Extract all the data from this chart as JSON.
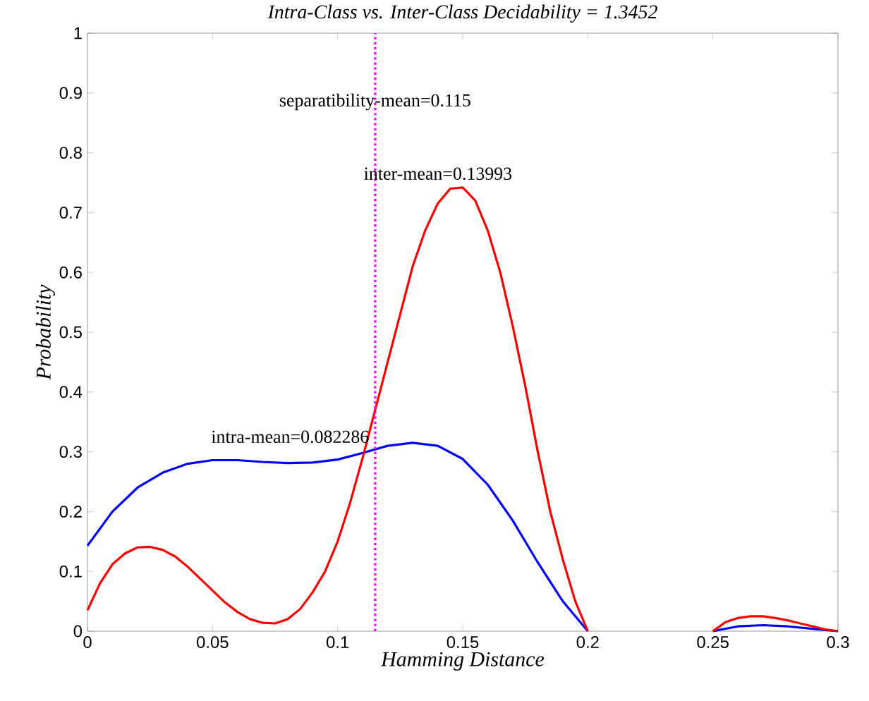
{
  "chart_data": {
    "type": "line",
    "title": "Intra-Class vs. Inter-Class Decidability = 1.3452",
    "xlabel": "Hamming Distance",
    "ylabel": "Probability",
    "xlim": [
      0,
      0.3
    ],
    "ylim": [
      0,
      1
    ],
    "xticks": [
      0,
      0.05,
      0.1,
      0.15,
      0.2,
      0.25,
      0.3
    ],
    "yticks": [
      0,
      0.1,
      0.2,
      0.3,
      0.4,
      0.5,
      0.6,
      0.7,
      0.8,
      0.9,
      1
    ],
    "grid": false,
    "marker": "none",
    "line_style": "solid",
    "series": [
      {
        "color": "#0000ff",
        "x": [
          0,
          0.01,
          0.02,
          0.03,
          0.04,
          0.05,
          0.06,
          0.07,
          0.08,
          0.09,
          0.1,
          0.11,
          0.12,
          0.13,
          0.14,
          0.15,
          0.16,
          0.17,
          0.18,
          0.19,
          0.2,
          0.21,
          0.22,
          0.23,
          0.24,
          0.25,
          0.26,
          0.27,
          0.28,
          0.29,
          0.3
        ],
        "values": [
          0.143,
          0.2,
          0.24,
          0.265,
          0.28,
          0.286,
          0.286,
          0.283,
          0.281,
          0.282,
          0.287,
          0.298,
          0.31,
          0.315,
          0.31,
          0.288,
          0.245,
          0.185,
          0.115,
          0.05,
          0,
          null,
          null,
          null,
          null,
          0,
          0.008,
          0.01,
          0.008,
          0.004,
          0
        ]
      },
      {
        "color": "#ff0000",
        "x": [
          0,
          0.005,
          0.01,
          0.015,
          0.02,
          0.025,
          0.03,
          0.035,
          0.04,
          0.045,
          0.05,
          0.055,
          0.06,
          0.065,
          0.07,
          0.075,
          0.08,
          0.085,
          0.09,
          0.095,
          0.1,
          0.105,
          0.11,
          0.115,
          0.12,
          0.125,
          0.13,
          0.135,
          0.14,
          0.145,
          0.15,
          0.155,
          0.16,
          0.165,
          0.17,
          0.175,
          0.18,
          0.185,
          0.19,
          0.195,
          0.2,
          0.225,
          0.25,
          0.255,
          0.26,
          0.265,
          0.27,
          0.275,
          0.28,
          0.285,
          0.29,
          0.295,
          0.3
        ],
        "values": [
          0.035,
          0.08,
          0.112,
          0.13,
          0.14,
          0.141,
          0.136,
          0.125,
          0.108,
          0.088,
          0.068,
          0.048,
          0.032,
          0.02,
          0.014,
          0.013,
          0.02,
          0.037,
          0.065,
          0.1,
          0.15,
          0.215,
          0.29,
          0.37,
          0.45,
          0.53,
          0.61,
          0.67,
          0.715,
          0.74,
          0.742,
          0.72,
          0.67,
          0.6,
          0.51,
          0.41,
          0.3,
          0.2,
          0.12,
          0.05,
          0,
          null,
          0,
          0.015,
          0.022,
          0.025,
          0.025,
          0.022,
          0.018,
          0.013,
          0.008,
          0.003,
          0
        ]
      }
    ],
    "ref_lines": [
      {
        "axis": "x",
        "value": 0.115,
        "color": "#ff00ff",
        "line_style": "dotted"
      }
    ],
    "annotations": [
      {
        "text": "separatibility-mean=0.115",
        "x": 0.115,
        "y": 0.885
      },
      "inter-mean=0.13993",
      "intra-mean=0.082286"
    ]
  }
}
